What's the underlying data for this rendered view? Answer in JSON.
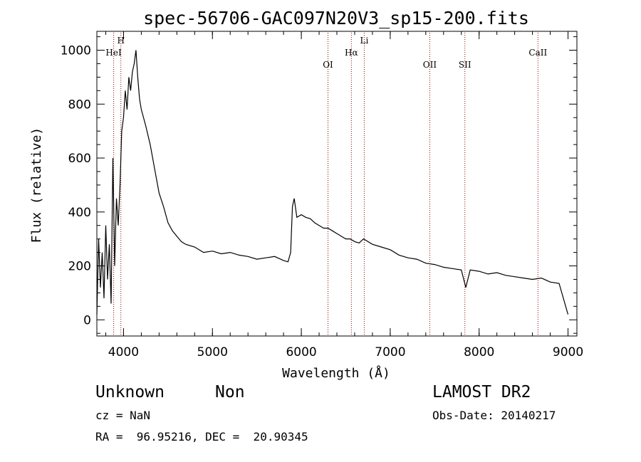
{
  "chart_data": {
    "type": "line",
    "title": "spec-56706-GAC097N20V3_sp15-200.fits",
    "xlabel": "Wavelength (Å)",
    "ylabel": "Flux (relative)",
    "xlim": [
      3700,
      9100
    ],
    "ylim": [
      -60,
      1070
    ],
    "xticks": [
      4000,
      5000,
      6000,
      7000,
      8000,
      9000
    ],
    "yticks": [
      0,
      200,
      400,
      600,
      800,
      1000
    ],
    "grid": false,
    "legend": "none",
    "line_color": "#000000",
    "marker_color": "#8b0000",
    "series": [
      {
        "x": [
          3700,
          3720,
          3740,
          3760,
          3780,
          3800,
          3820,
          3840,
          3860,
          3880,
          3900,
          3920,
          3940,
          3960,
          3980,
          4000,
          4020,
          4040,
          4060,
          4080,
          4100,
          4120,
          4140,
          4160,
          4180,
          4200,
          4250,
          4300,
          4350,
          4400,
          4450,
          4500,
          4550,
          4600,
          4650,
          4700,
          4800,
          4900,
          5000,
          5100,
          5200,
          5300,
          5400,
          5500,
          5600,
          5700,
          5800,
          5850,
          5880,
          5900,
          5920,
          5950,
          6000,
          6050,
          6100,
          6150,
          6200,
          6250,
          6300,
          6350,
          6400,
          6450,
          6500,
          6550,
          6600,
          6650,
          6700,
          6800,
          6900,
          7000,
          7100,
          7200,
          7300,
          7400,
          7500,
          7600,
          7700,
          7800,
          7850,
          7900,
          8000,
          8100,
          8200,
          8300,
          8400,
          8500,
          8600,
          8700,
          8800,
          8900,
          9000
        ],
        "y": [
          20,
          300,
          120,
          250,
          80,
          350,
          150,
          280,
          60,
          600,
          200,
          450,
          350,
          500,
          700,
          750,
          850,
          780,
          900,
          850,
          920,
          950,
          1000,
          900,
          820,
          780,
          720,
          650,
          560,
          470,
          420,
          360,
          330,
          310,
          290,
          280,
          270,
          250,
          255,
          245,
          250,
          240,
          235,
          225,
          230,
          235,
          220,
          215,
          250,
          420,
          450,
          380,
          390,
          380,
          375,
          360,
          350,
          340,
          340,
          330,
          320,
          310,
          300,
          300,
          290,
          285,
          300,
          280,
          270,
          260,
          240,
          230,
          225,
          210,
          205,
          195,
          190,
          185,
          120,
          185,
          180,
          170,
          175,
          165,
          160,
          155,
          150,
          155,
          140,
          135,
          20
        ]
      }
    ],
    "lines": [
      {
        "label": "HeI",
        "x": 3889
      },
      {
        "label": "H",
        "x": 3970
      },
      {
        "label": "OI",
        "x": 6300
      },
      {
        "label": "Hα",
        "x": 6563
      },
      {
        "label": "Li",
        "x": 6708
      },
      {
        "label": "OII",
        "x": 7445
      },
      {
        "label": "SII",
        "x": 7840
      },
      {
        "label": "CaII",
        "x": 8662
      }
    ]
  },
  "footer": {
    "object_class": "Unknown",
    "subclass": "Non",
    "survey": "LAMOST DR2",
    "redshift": "cz = NaN",
    "obs_date": "Obs-Date: 20140217",
    "coords": "RA =  96.95216, DEC =  20.90345"
  }
}
